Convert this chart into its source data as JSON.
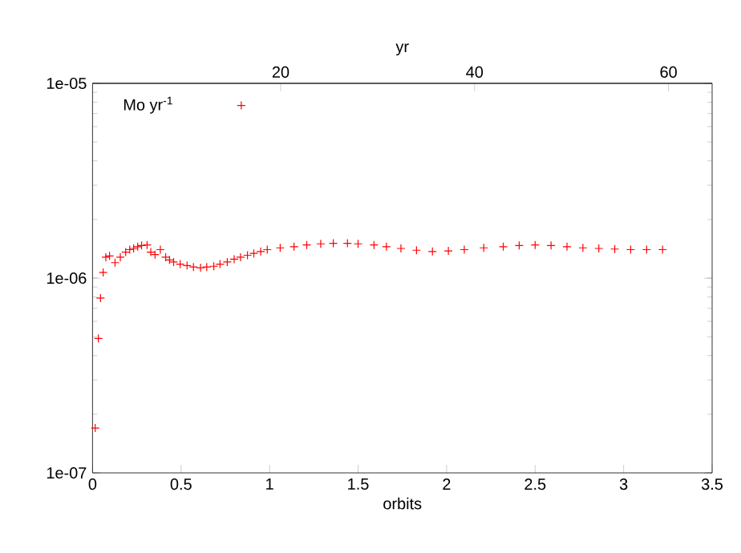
{
  "chart_data": {
    "type": "scatter",
    "xlabel": "orbits",
    "x2label": "yr",
    "log": "y",
    "marker": "cross",
    "grid": false,
    "annotations": [
      "Mo yr$^{-1}$"
    ],
    "xlim": [
      0,
      3.5
    ],
    "xticks": [
      0,
      0.5,
      1,
      1.5,
      2,
      2.5,
      3,
      3.5
    ],
    "x2lim": [
      0.6,
      64.5
    ],
    "x2ticks": [
      20,
      40,
      60
    ],
    "ylim": [
      1e-07,
      1e-05
    ],
    "yticks": [
      {
        "value": 1e-07,
        "label": "1e-07"
      },
      {
        "value": 1e-06,
        "label": "1e-06"
      },
      {
        "value": 1e-05,
        "label": "1e-05"
      }
    ],
    "series": [
      {
        "color": "#ff0000",
        "x": [
          0.015,
          0.033,
          0.045,
          0.06,
          0.075,
          0.096,
          0.127,
          0.157,
          0.187,
          0.21,
          0.232,
          0.255,
          0.277,
          0.308,
          0.329,
          0.353,
          0.383,
          0.413,
          0.435,
          0.458,
          0.495,
          0.534,
          0.57,
          0.61,
          0.645,
          0.685,
          0.72,
          0.761,
          0.8,
          0.836,
          0.84,
          0.875,
          0.911,
          0.95,
          0.987,
          1.06,
          1.138,
          1.21,
          1.289,
          1.36,
          1.44,
          1.5,
          1.59,
          1.66,
          1.742,
          1.83,
          1.92,
          2.01,
          2.1,
          2.21,
          2.32,
          2.41,
          2.5,
          2.59,
          2.68,
          2.77,
          2.86,
          2.95,
          3.04,
          3.13,
          3.22
        ],
        "values": [
          1.7e-07,
          4.9e-07,
          7.9e-07,
          1.07e-06,
          1.28e-06,
          1.3e-06,
          1.2e-06,
          1.28e-06,
          1.36e-06,
          1.4e-06,
          1.42e-06,
          1.45e-06,
          1.47e-06,
          1.48e-06,
          1.36e-06,
          1.32e-06,
          1.4e-06,
          1.28e-06,
          1.24e-06,
          1.21e-06,
          1.18e-06,
          1.16e-06,
          1.14e-06,
          1.13e-06,
          1.14e-06,
          1.15e-06,
          1.18e-06,
          1.21e-06,
          1.25e-06,
          1.28e-06,
          7.7e-06,
          1.31e-06,
          1.34e-06,
          1.37e-06,
          1.4e-06,
          1.43e-06,
          1.45e-06,
          1.48e-06,
          1.5e-06,
          1.51e-06,
          1.51e-06,
          1.5e-06,
          1.48e-06,
          1.45e-06,
          1.42e-06,
          1.39e-06,
          1.37e-06,
          1.38e-06,
          1.4e-06,
          1.43e-06,
          1.45e-06,
          1.47e-06,
          1.48e-06,
          1.47e-06,
          1.45e-06,
          1.43e-06,
          1.42e-06,
          1.41e-06,
          1.4e-06,
          1.4e-06,
          1.4e-06
        ]
      }
    ]
  }
}
